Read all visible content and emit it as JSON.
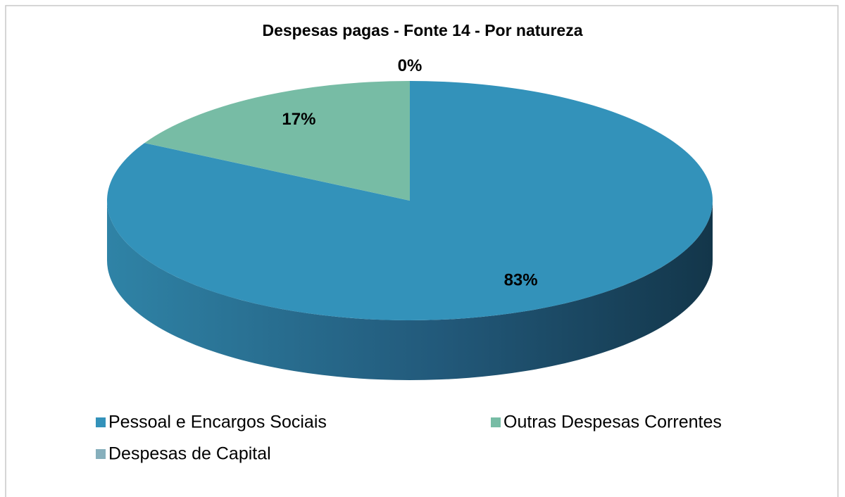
{
  "chart_data": {
    "type": "pie",
    "title": "Despesas pagas - Fonte 14 - Por natureza",
    "categories": [
      "Pessoal e Encargos Sociais",
      "Outras Despesas Correntes",
      "Despesas de Capital"
    ],
    "values": [
      83,
      17,
      0
    ],
    "value_labels": [
      "83%",
      "17%",
      "0%"
    ],
    "colors": [
      "#3392ba",
      "#77bca5",
      "#86afbc"
    ],
    "legend": "bottom"
  }
}
